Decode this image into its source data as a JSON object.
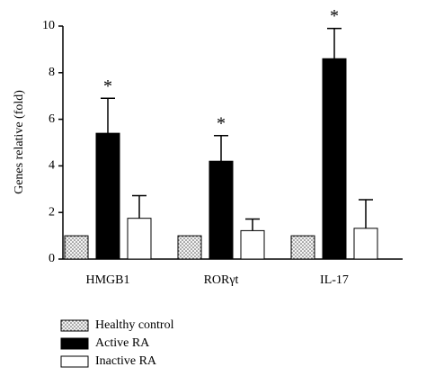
{
  "chart_data": {
    "type": "bar",
    "y_label": "Genes relative (fold)",
    "categories": [
      "HMGB1",
      "RORγt",
      "IL-17"
    ],
    "series": [
      {
        "name": "Healthy control",
        "color": "#e8e8e8",
        "fill": "dots",
        "values": [
          1.0,
          1.0,
          1.0
        ]
      },
      {
        "name": "Active RA",
        "color": "#000000",
        "values": [
          5.4,
          4.2,
          8.6
        ],
        "errors": [
          1.5,
          1.1,
          1.3
        ],
        "annotations": [
          "*",
          "*",
          "*"
        ]
      },
      {
        "name": "Inactive RA",
        "color": "#ffffff",
        "values": [
          1.75,
          1.22,
          1.32
        ],
        "errors": [
          0.97,
          0.5,
          1.23
        ]
      }
    ],
    "ylim": [
      0,
      10
    ],
    "yticks": [
      0,
      2,
      4,
      6,
      8,
      10
    ],
    "legend": "bottom-left"
  }
}
